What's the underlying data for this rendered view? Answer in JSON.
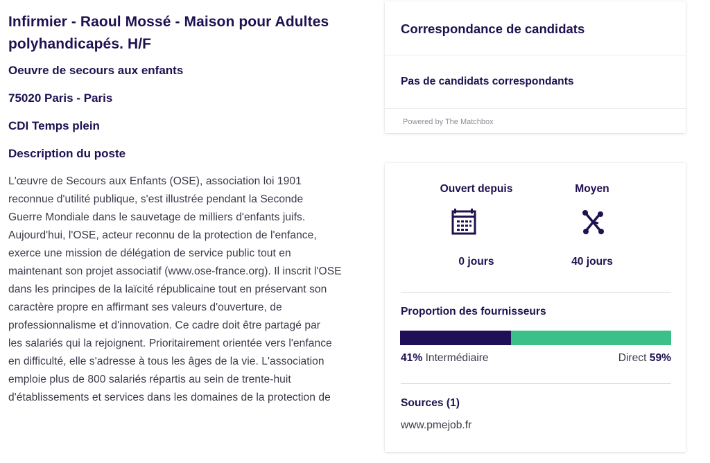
{
  "job": {
    "title": "Infirmier - Raoul Mossé - Maison pour Adultes polyhandicapés. H/F",
    "company": "Oeuvre de secours aux enfants",
    "location": "75020 Paris - Paris",
    "contract": "CDI Temps plein",
    "description_heading": "Description du poste",
    "description_lines": [
      "L'œuvre de Secours aux Enfants (OSE), association loi 1901",
      "reconnue d'utilité publique, s'est illustrée pendant la Seconde",
      "Guerre Mondiale dans le sauvetage de milliers d'enfants juifs.",
      "Aujourd'hui, l'OSE, acteur reconnu de la protection de l'enfance,",
      "exerce une mission de délégation de service public tout en",
      "maintenant son projet associatif (www.ose-france.org). Il inscrit l'OSE",
      "dans les principes de la laïcité républicaine tout en préservant son",
      "caractère propre en affirmant ses valeurs d'ouverture, de",
      "professionnalisme et d'innovation. Ce cadre doit être partagé par",
      "les salariés qui la rejoignent. Prioritairement orientée vers l'enfance",
      "en difficulté, elle s'adresse à tous les âges de la vie. L'association",
      "emploie plus de 800 salariés répartis au sein de trente-huit",
      "d'établissements et services dans les domaines de la protection de"
    ]
  },
  "matching": {
    "title": "Correspondance de candidats",
    "empty_message": "Pas de candidats correspondants",
    "powered_by": "Powered by The Matchbox"
  },
  "stats": {
    "open_since_label": "Ouvert depuis",
    "open_since_value": "0 jours",
    "open_since_icon": "calendar-icon",
    "average_label": "Moyen",
    "average_value": "40 jours",
    "average_icon": "network-nodes-icon",
    "suppliers_title": "Proportion des fournisseurs",
    "intermediary_pct": 41,
    "intermediary_pct_text": "41%",
    "intermediary_label": "Intermédiaire",
    "direct_label": "Direct",
    "direct_pct_text": "59%",
    "sources_title": "Sources (1)",
    "sources": [
      "www.pmejob.fr"
    ]
  },
  "colors": {
    "heading": "#1f1050",
    "body_text": "#3a3a4a",
    "intermediary_bar": "#1f0f56",
    "direct_bar": "#3cc08a",
    "muted": "#8d8d99"
  }
}
